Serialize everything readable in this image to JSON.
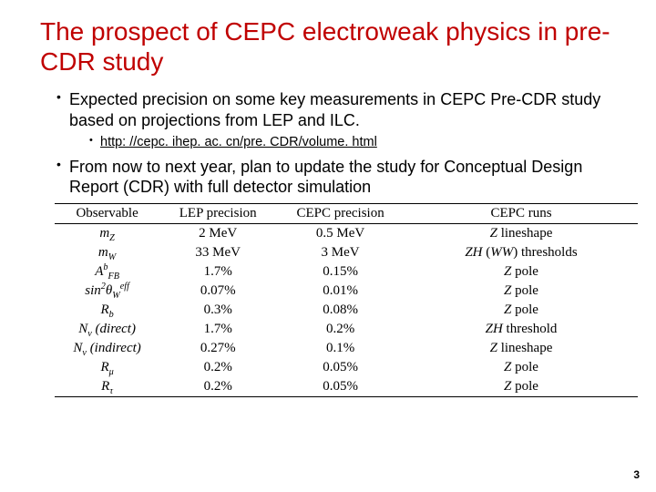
{
  "title": "The prospect of CEPC electroweak physics in pre-CDR study",
  "bullets": {
    "b1": "Expected precision on some key measurements in CEPC Pre-CDR study based on projections from LEP and ILC.",
    "b1a": "http: //cepc. ihep. ac. cn/pre. CDR/volume. html",
    "b2": "From now to next year, plan to update the study for Conceptual Design Report (CDR) with full detector simulation"
  },
  "table": {
    "columns": [
      "Observable",
      "LEP precision",
      "CEPC precision",
      "CEPC runs"
    ],
    "rows": [
      {
        "obs_html": "<i>m</i><sub>Z</sub>",
        "lep": "2 MeV",
        "cepc": "0.5 MeV",
        "runs_html": "<i>Z</i> lineshape"
      },
      {
        "obs_html": "<i>m</i><sub>W</sub>",
        "lep": "33 MeV",
        "cepc": "3 MeV",
        "runs_html": "<i>ZH</i> (<i>WW</i>) thresholds"
      },
      {
        "obs_html": "<i>A</i><sup>b</sup><sub>FB</sub>",
        "lep": "1.7%",
        "cepc": "0.15%",
        "runs_html": "<i>Z</i> pole"
      },
      {
        "obs_html": "sin<sup>2</sup>θ<sub>W</sub><sup>eff</sup>",
        "lep": "0.07%",
        "cepc": "0.01%",
        "runs_html": "<i>Z</i> pole"
      },
      {
        "obs_html": "<i>R</i><sub>b</sub>",
        "lep": "0.3%",
        "cepc": "0.08%",
        "runs_html": "<i>Z</i> pole"
      },
      {
        "obs_html": "<i>N</i><sub>ν</sub> (direct)",
        "lep": "1.7%",
        "cepc": "0.2%",
        "runs_html": "<i>ZH</i> threshold"
      },
      {
        "obs_html": "<i>N</i><sub>ν</sub> (indirect)",
        "lep": "0.27%",
        "cepc": "0.1%",
        "runs_html": "<i>Z</i> lineshape"
      },
      {
        "obs_html": "<i>R</i><sub>μ</sub>",
        "lep": "0.2%",
        "cepc": "0.05%",
        "runs_html": "<i>Z</i> pole"
      },
      {
        "obs_html": "<i>R</i><sub>τ</sub>",
        "lep": "0.2%",
        "cepc": "0.05%",
        "runs_html": "<i>Z</i> pole"
      }
    ],
    "border_color": "#000000",
    "font_family": "Times New Roman"
  },
  "pagenum": "3",
  "colors": {
    "title": "#c00000",
    "text": "#000000",
    "bg": "#ffffff"
  }
}
